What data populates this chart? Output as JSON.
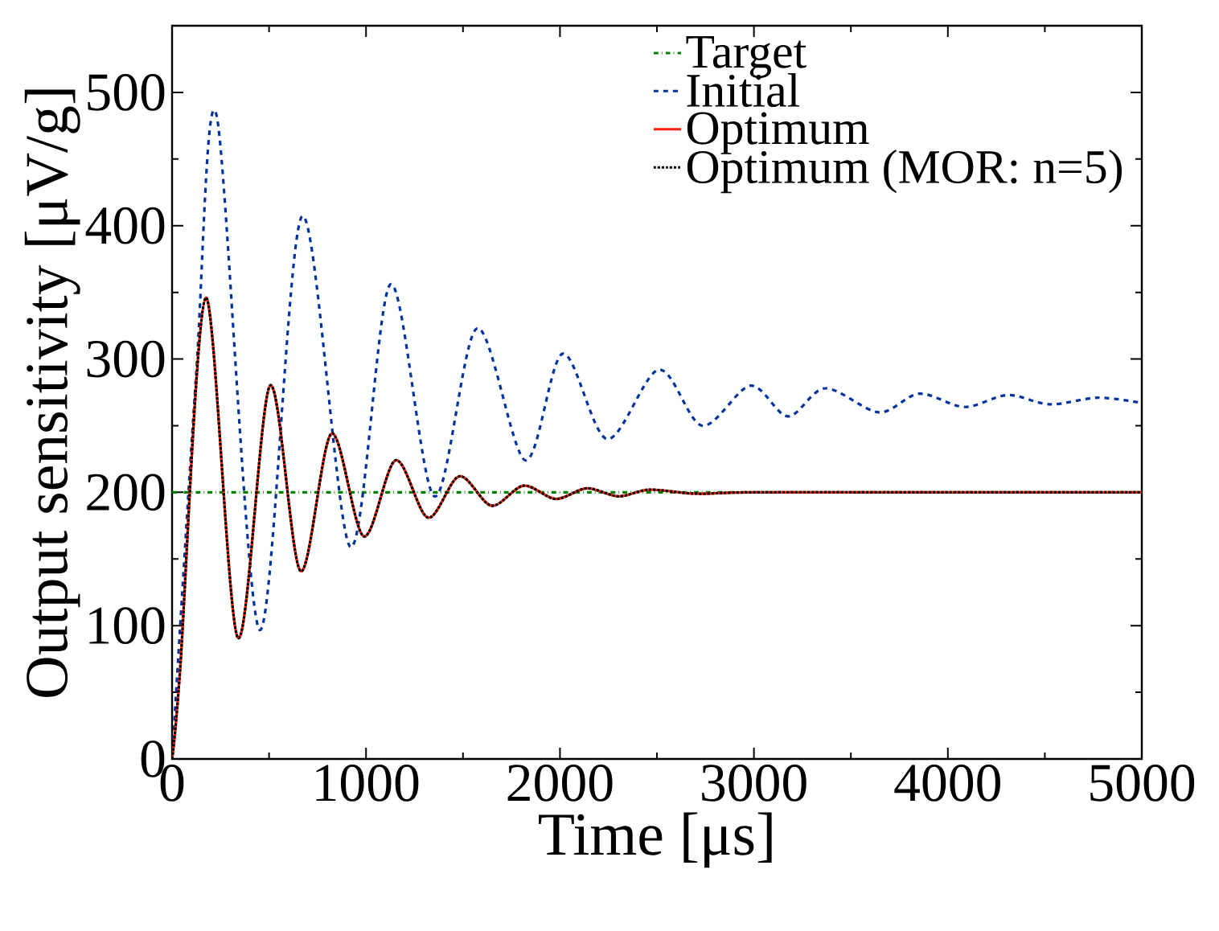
{
  "chart_data": {
    "type": "line",
    "xlabel": "Time [μs]",
    "ylabel": "Output sensitivity [μV/g]",
    "xlim": [
      0,
      5000
    ],
    "ylim": [
      0,
      550
    ],
    "xticks": [
      0,
      1000,
      2000,
      3000,
      4000,
      5000
    ],
    "yticks": [
      0,
      100,
      200,
      300,
      400,
      500
    ],
    "grid": false,
    "legend": "top right",
    "series": [
      {
        "name": "Target",
        "color": "#008000",
        "line_style": "dashdot",
        "x": [
          0,
          5000
        ],
        "values": [
          200,
          200
        ]
      },
      {
        "name": "Initial",
        "color": "#0033a0",
        "line_style": "dashed",
        "x": [
          0,
          124,
          229,
          450,
          670,
          919,
          1126,
          1352,
          1572,
          1821,
          2014,
          2243,
          2510,
          2733,
          2982,
          3175,
          3368,
          3645,
          3852,
          4087,
          4308,
          4526,
          4775,
          5000
        ],
        "values": [
          0,
          288,
          483,
          97,
          407,
          159,
          356,
          197,
          323,
          224,
          304,
          240,
          292,
          250,
          280,
          257,
          278,
          260,
          274,
          264,
          273,
          266,
          271,
          267
        ]
      },
      {
        "name": "Optimum",
        "color": "#ff2000",
        "line_style": "solid",
        "x": [
          0,
          41,
          174,
          339,
          505,
          662,
          822,
          988,
          1153,
          1319,
          1481,
          1647,
          1812,
          1978,
          2138,
          2303,
          2461,
          2700,
          3000,
          4000,
          5000
        ],
        "values": [
          0,
          66,
          346,
          91,
          280,
          141,
          244,
          167,
          224,
          181,
          212,
          190,
          205,
          195,
          203,
          197,
          202,
          199,
          200,
          200,
          200
        ]
      },
      {
        "name": "Optimum (MOR: n=5)",
        "color": "#000000",
        "line_style": "dotted",
        "x": [
          0,
          41,
          174,
          339,
          505,
          662,
          822,
          988,
          1153,
          1319,
          1481,
          1647,
          1812,
          1978,
          2138,
          2303,
          2461,
          2700,
          3000,
          4000,
          5000
        ],
        "values": [
          0,
          66,
          346,
          91,
          280,
          141,
          244,
          167,
          224,
          181,
          212,
          190,
          205,
          195,
          203,
          197,
          202,
          199,
          200,
          200,
          200
        ]
      }
    ]
  }
}
